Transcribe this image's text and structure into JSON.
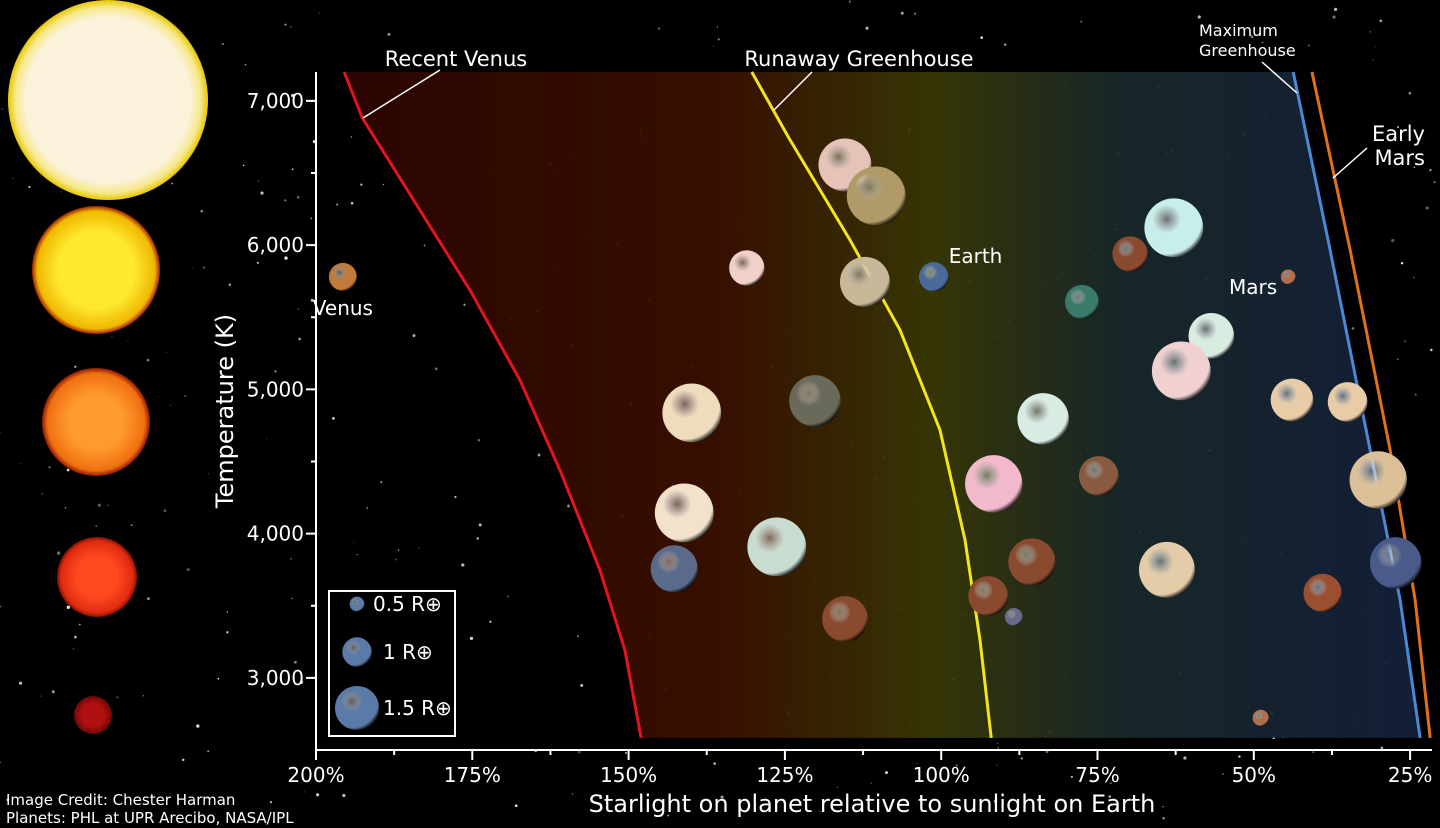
{
  "chart_data": {
    "type": "bubble",
    "xlabel": "Starlight on planet relative to sunlight on Earth",
    "ylabel": "Temperature (K)",
    "xlim": [
      200,
      21.5
    ],
    "ylim": [
      2500,
      7200
    ],
    "xticks": [
      {
        "value": 200,
        "label": "200%"
      },
      {
        "value": 175,
        "label": "175%"
      },
      {
        "value": 150,
        "label": "150%"
      },
      {
        "value": 125,
        "label": "125%"
      },
      {
        "value": 100,
        "label": "100%"
      },
      {
        "value": 75,
        "label": "75%"
      },
      {
        "value": 50,
        "label": "50%"
      },
      {
        "value": 25,
        "label": "25%"
      }
    ],
    "xminor": [
      187.5,
      162.5,
      137.5,
      112.5,
      87.5,
      62.5,
      37.5
    ],
    "yticks": [
      {
        "value": 3000,
        "label": "3,000"
      },
      {
        "value": 4000,
        "label": "4,000"
      },
      {
        "value": 5000,
        "label": "5,000"
      },
      {
        "value": 6000,
        "label": "6,000"
      },
      {
        "value": 7000,
        "label": "7,000"
      }
    ],
    "yminor": [
      3500,
      4500,
      5500,
      6500
    ],
    "points": {
      "x": [
        195.7,
        115.4,
        110.4,
        131.1,
        112.2,
        101.2,
        69.8,
        62.8,
        77.5,
        44.5,
        56.8,
        61.6,
        139.9,
        120.2,
        83.7,
        43.9,
        35.0,
        91.6,
        74.8,
        30.1,
        141.1,
        126.3,
        142.7,
        85.5,
        63.9,
        27.3,
        92.5,
        115.4,
        88.4,
        39.0,
        48.9
      ],
      "y": [
        5780,
        6556,
        6341,
        5842,
        5745,
        5780,
        5939,
        6120,
        5607,
        5780,
        5371,
        5128,
        4837,
        4920,
        4796,
        4927,
        4913,
        4345,
        4400,
        4372,
        4144,
        3908,
        3756,
        3804,
        3749,
        3797,
        3568,
        3409,
        3423,
        3589,
        2723
      ],
      "size": [
        0.95,
        1.8,
        2.0,
        1.2,
        1.7,
        1.0,
        1.2,
        2.0,
        1.15,
        0.5,
        1.55,
        2.0,
        2.0,
        1.75,
        1.75,
        1.45,
        1.35,
        1.95,
        1.35,
        1.95,
        2.0,
        2.0,
        1.6,
        1.6,
        1.9,
        1.75,
        1.35,
        1.55,
        0.6,
        1.3,
        0.55
      ],
      "labels": [
        "Venus",
        null,
        null,
        null,
        null,
        "Earth",
        null,
        null,
        null,
        "Mars",
        null,
        null,
        null,
        null,
        null,
        null,
        null,
        null,
        null,
        null,
        null,
        null,
        null,
        null,
        null,
        null,
        null,
        null,
        null,
        null,
        null
      ],
      "colors": [
        "#c07a3a",
        "#e6c3b8",
        "#b09a68",
        "#f0d0c8",
        "#c8b89a",
        "#4a6a9a",
        "#8a4a30",
        "#c8eeea",
        "#3a7a6a",
        "#b07050",
        "#d8ece0",
        "#f0d0d0",
        "#eedcbc",
        "#6a6a5a",
        "#d8ece4",
        "#e8cca8",
        "#e8cca8",
        "#f2b8cc",
        "#8a5a40",
        "#dcc098",
        "#f2e2cc",
        "#c8dcd0",
        "#5a6a8a",
        "#8a4a30",
        "#e4cca8",
        "#4a5a8a",
        "#8a4a30",
        "#8a4a30",
        "#6a6a8a",
        "#9a5030",
        "#b07050"
      ]
    },
    "size_legend": [
      {
        "size": 0.5,
        "label": "0.5 R⊕"
      },
      {
        "size": 1,
        "label": "1 R⊕"
      },
      {
        "size": 1.5,
        "label": "1.5 R⊕"
      }
    ],
    "zones": [
      {
        "label": [
          "Recent Venus"
        ],
        "color": "#e0161c",
        "x": [
          195.5,
          192.6,
          183.4,
          175.4,
          167.4,
          161.0,
          154.6,
          150.6,
          148.0
        ],
        "y": [
          7200,
          6882,
          6244,
          5690,
          5066,
          4442,
          3749,
          3194,
          2584
        ]
      },
      {
        "label": [
          "Runaway Greenhouse"
        ],
        "color": "#f4e41a",
        "x": [
          130.3,
          124.2,
          114.6,
          106.6,
          100.2,
          96.2,
          93.8,
          92.0
        ],
        "y": [
          7200,
          6730,
          6036,
          5412,
          4719,
          3957,
          3263,
          2584
        ]
      },
      {
        "label": [
          "Maximum",
          "Greenhouse"
        ],
        "color": "#4a8ad4",
        "x": [
          43.7,
          37.8,
          31.4,
          26.6,
          23.4
        ],
        "y": [
          7200,
          5967,
          4581,
          3541,
          2584
        ]
      },
      {
        "label": [
          "Early",
          "Mars"
        ],
        "color": "#e0701a",
        "x": [
          40.7,
          34.6,
          28.2,
          24.2,
          21.8
        ],
        "y": [
          7200,
          5967,
          4581,
          3541,
          2584
        ]
      }
    ],
    "credits": [
      "Image Credit: Chester Harman",
      "Planets:  PHL at UPR Arecibo, NASA/IPL"
    ]
  }
}
